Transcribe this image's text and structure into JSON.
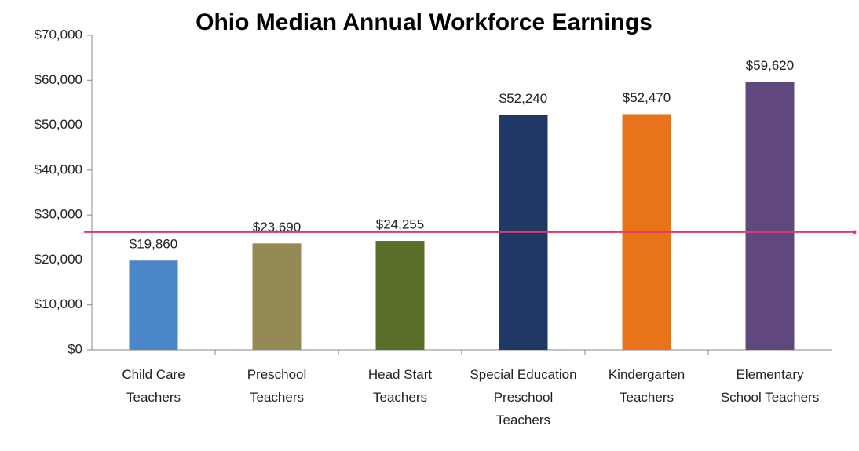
{
  "chart_data": {
    "type": "bar",
    "title": "Ohio Median Annual Workforce Earnings",
    "categories": [
      "Child Care Teachers",
      "Preschool Teachers",
      "Head Start Teachers",
      "Special Education Preschool Teachers",
      "Kindergarten Teachers",
      "Elementary School Teachers"
    ],
    "values": [
      19860,
      23690,
      24255,
      52240,
      52470,
      59620
    ],
    "value_labels": [
      "$19,860",
      "$23,690",
      "$24,255",
      "$52,240",
      "$52,470",
      "$59,620"
    ],
    "colors": [
      "#4a86c8",
      "#948a54",
      "#5a6e2a",
      "#1f3864",
      "#e8731a",
      "#60487f"
    ],
    "ylim": [
      0,
      70000
    ],
    "yticks": [
      {
        "value": 0,
        "label": "$0"
      },
      {
        "value": 10000,
        "label": "$10,000"
      },
      {
        "value": 20000,
        "label": "$20,000"
      },
      {
        "value": 30000,
        "label": "$30,000"
      },
      {
        "value": 40000,
        "label": "$40,000"
      },
      {
        "value": 50000,
        "label": "$50,000"
      },
      {
        "value": 60000,
        "label": "$60,000"
      },
      {
        "value": 70000,
        "label": "$70,000"
      }
    ],
    "reference_line": {
      "value": 26200,
      "color": "#e8336b"
    },
    "grid": false
  }
}
